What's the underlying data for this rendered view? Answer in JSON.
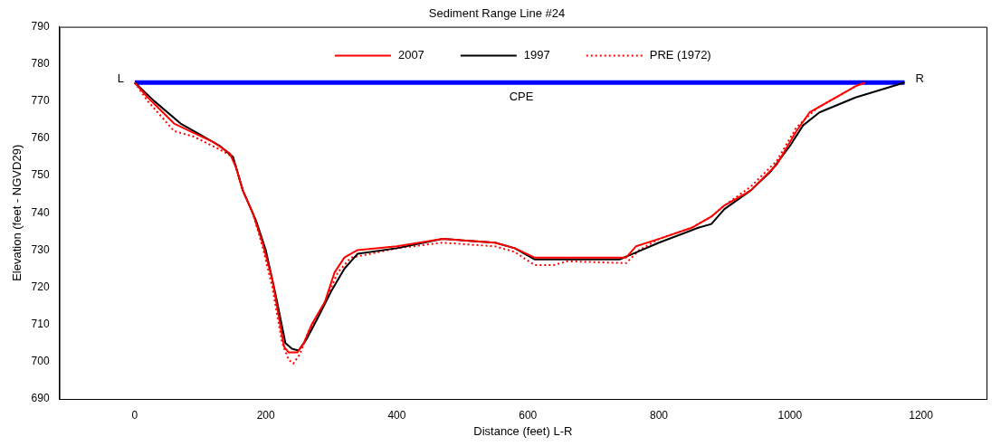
{
  "chart_data": {
    "type": "line",
    "title": "Sediment Range Line #24",
    "xlabel": "Distance (feet) L-R",
    "ylabel": "Elevation (feet - NGVD29)",
    "xlim": [
      -115,
      1300
    ],
    "xticks": [
      0,
      200,
      400,
      600,
      800,
      1000,
      1200
    ],
    "ylim": [
      690,
      790
    ],
    "yticks": [
      690,
      700,
      710,
      720,
      730,
      740,
      750,
      760,
      770,
      780,
      790
    ],
    "grid": false,
    "legend": "top",
    "marker": "none",
    "series": [
      {
        "name": "2007",
        "color": "#ff0000",
        "line_style": "solid",
        "x": [
          0,
          20,
          60,
          90,
          120,
          145,
          155,
          165,
          180,
          195,
          210,
          220,
          228,
          235,
          248,
          258,
          270,
          290,
          305,
          320,
          340,
          400,
          470,
          550,
          580,
          610,
          650,
          750,
          765,
          800,
          850,
          880,
          900,
          940,
          980,
          1010,
          1030,
          1060,
          1100,
          1115
        ],
        "values": [
          775,
          771,
          764,
          761.5,
          759,
          756,
          752,
          746,
          740,
          732,
          722,
          712,
          704,
          702.5,
          702.5,
          705,
          710,
          716,
          724,
          728,
          730,
          731,
          733,
          732,
          730.5,
          728,
          728,
          728,
          731,
          733,
          736,
          739,
          742,
          746,
          753,
          762,
          767,
          770,
          774,
          775
        ]
      },
      {
        "name": "1997",
        "color": "#000000",
        "line_style": "solid",
        "x": [
          0,
          30,
          70,
          100,
          130,
          150,
          165,
          185,
          200,
          215,
          230,
          240,
          250,
          262,
          280,
          300,
          320,
          340,
          400,
          470,
          550,
          580,
          610,
          650,
          740,
          760,
          800,
          860,
          880,
          900,
          940,
          970,
          1000,
          1020,
          1045,
          1100,
          1175
        ],
        "values": [
          775,
          770,
          764,
          761,
          758,
          755,
          746,
          738,
          730,
          718,
          705,
          703.5,
          703,
          706,
          712,
          719,
          725,
          729,
          730.5,
          733,
          732,
          730.5,
          727.5,
          727.5,
          727.5,
          729,
          732,
          736,
          737,
          741,
          746,
          751,
          758,
          763.5,
          767,
          771,
          775
        ]
      },
      {
        "name": "PRE (1972)",
        "color": "#ff0000",
        "line_style": "dotted",
        "x": [
          0,
          20,
          60,
          90,
          130,
          150,
          165,
          180,
          195,
          210,
          225,
          235,
          242,
          252,
          265,
          290,
          310,
          330,
          360,
          400,
          470,
          550,
          580,
          610,
          640,
          660,
          750,
          770,
          800,
          850,
          880,
          900,
          940,
          980,
          1010,
          1040,
          1080,
          1110
        ],
        "values": [
          775,
          770,
          762,
          760.5,
          757,
          755,
          746,
          740,
          731,
          720,
          705,
          700.5,
          699.5,
          702,
          708,
          716,
          724,
          728,
          729,
          730.5,
          732,
          731,
          729.5,
          726,
          726,
          727,
          726.5,
          730,
          733,
          736,
          739,
          742,
          747,
          754,
          763,
          768,
          772,
          775
        ]
      },
      {
        "color": "#0000ff",
        "line_style": "solid",
        "x": [
          0,
          1175
        ],
        "values": [
          775,
          775
        ]
      }
    ],
    "annotations": [
      {
        "text": "L",
        "x": 0,
        "y": 775
      },
      {
        "text": "R",
        "x": 1175,
        "y": 775
      },
      {
        "text": "CPE",
        "x": 590,
        "y": 775
      }
    ]
  }
}
